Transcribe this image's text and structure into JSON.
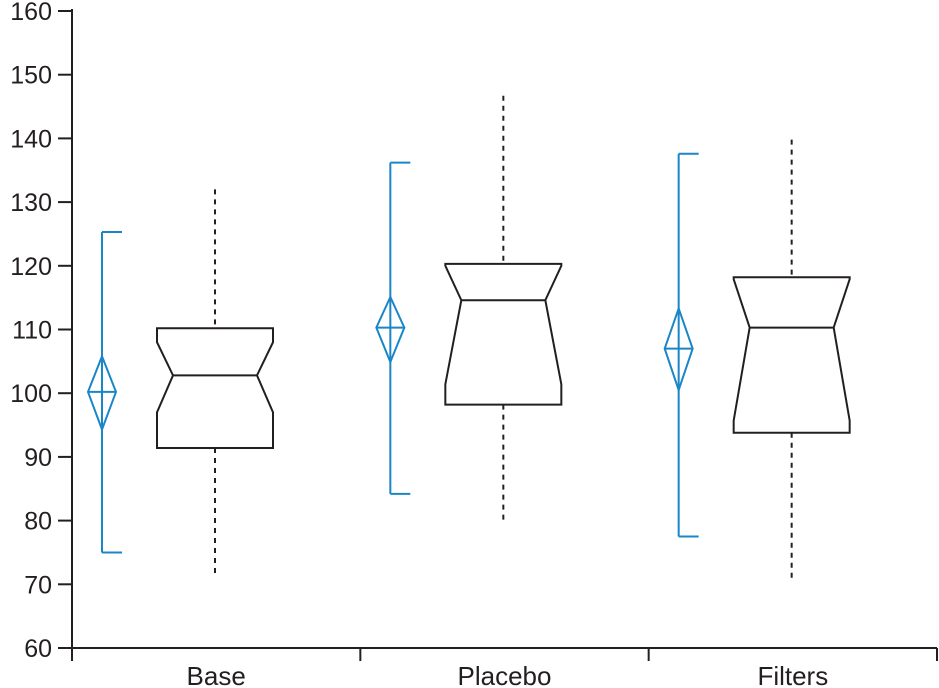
{
  "chart_data": {
    "type": "boxplot",
    "categories": [
      "Base",
      "Placebo",
      "Filters"
    ],
    "ylim": [
      60,
      160
    ],
    "yticks": [
      60,
      70,
      80,
      90,
      100,
      110,
      120,
      130,
      140,
      150,
      160
    ],
    "grid": false,
    "colors": {
      "box": "#231f20",
      "interval": "#1a86c7",
      "axis": "#231f20"
    },
    "intervals": [
      {
        "category": "Base",
        "low": 75,
        "high": 125.3,
        "mean": 100.2,
        "ci_low": 94.3,
        "ci_high": 105.8
      },
      {
        "category": "Placebo",
        "low": 84.2,
        "high": 136.2,
        "mean": 110.3,
        "ci_low": 104.9,
        "ci_high": 115.1
      },
      {
        "category": "Filters",
        "low": 77.5,
        "high": 137.6,
        "mean": 107.0,
        "ci_low": 100.5,
        "ci_high": 113.3
      }
    ],
    "boxes": [
      {
        "category": "Base",
        "whisker_low": 71.6,
        "q1": 91.4,
        "notch_low": 97.0,
        "median": 102.8,
        "notch_high": 108.0,
        "q3": 110.2,
        "whisker_high": 132.0
      },
      {
        "category": "Placebo",
        "whisker_low": 80.0,
        "q1": 98.2,
        "notch_low": 101.4,
        "median": 114.6,
        "notch_high": 120.0,
        "q3": 120.3,
        "whisker_high": 146.7
      },
      {
        "category": "Filters",
        "whisker_low": 70.3,
        "q1": 93.8,
        "notch_low": 95.7,
        "median": 110.3,
        "notch_high": 117.9,
        "q3": 118.2,
        "whisker_high": 139.8
      }
    ]
  }
}
